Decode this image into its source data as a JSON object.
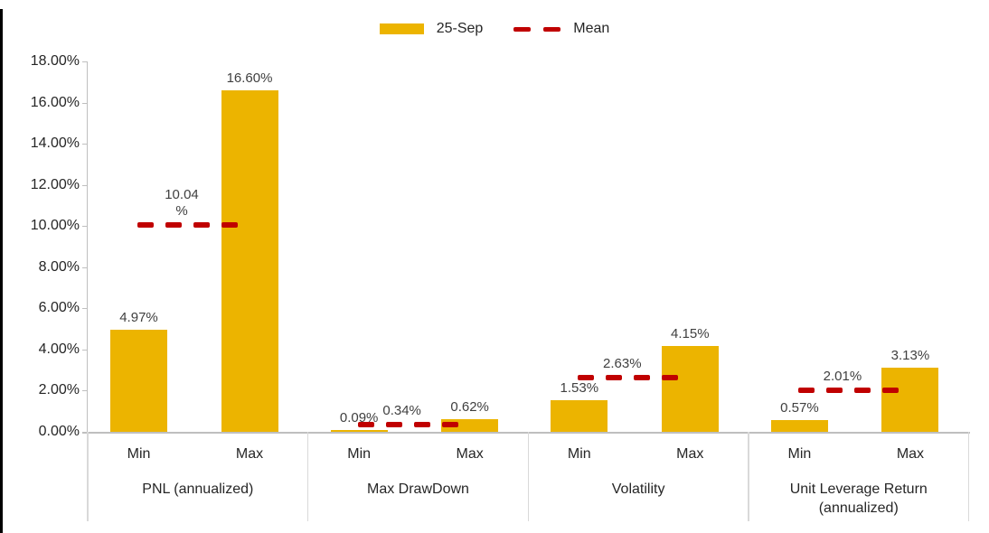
{
  "legend": {
    "items": [
      {
        "type": "bar",
        "label": "25-Sep",
        "color": "#ECB400"
      },
      {
        "type": "dash",
        "label": "Mean",
        "color": "#C00000"
      }
    ]
  },
  "chart_data": {
    "type": "bar",
    "title": "",
    "xlabel": "",
    "ylabel": "",
    "ylim": [
      0,
      18
    ],
    "grid": false,
    "legend_position": "top-center",
    "bar_series_name": "25-Sep",
    "mean_series_name": "Mean",
    "yticks": [
      {
        "value": 0,
        "label": "0.00%"
      },
      {
        "value": 2,
        "label": "2.00%"
      },
      {
        "value": 4,
        "label": "4.00%"
      },
      {
        "value": 6,
        "label": "6.00%"
      },
      {
        "value": 8,
        "label": "8.00%"
      },
      {
        "value": 10,
        "label": "10.00%"
      },
      {
        "value": 12,
        "label": "12.00%"
      },
      {
        "value": 14,
        "label": "14.00%"
      },
      {
        "value": 16,
        "label": "16.00%"
      },
      {
        "value": 18,
        "label": "18.00%"
      }
    ],
    "groups": [
      {
        "category": "PNL (annualized)",
        "bars": [
          {
            "label": "Min",
            "value": 4.97,
            "value_label": "4.97%"
          },
          {
            "label": "Max",
            "value": 16.6,
            "value_label": "16.60%"
          }
        ],
        "mean": {
          "value": 10.04,
          "label": "10.04\n%"
        }
      },
      {
        "category": "Max DrawDown",
        "bars": [
          {
            "label": "Min",
            "value": 0.09,
            "value_label": "0.09%"
          },
          {
            "label": "Max",
            "value": 0.62,
            "value_label": "0.62%"
          }
        ],
        "mean": {
          "value": 0.34,
          "label": "0.34%"
        }
      },
      {
        "category": "Volatility",
        "bars": [
          {
            "label": "Min",
            "value": 1.53,
            "value_label": "1.53%"
          },
          {
            "label": "Max",
            "value": 4.15,
            "value_label": "4.15%"
          }
        ],
        "mean": {
          "value": 2.63,
          "label": "2.63%"
        }
      },
      {
        "category": "Unit Leverage Return\n(annualized)",
        "bars": [
          {
            "label": "Min",
            "value": 0.57,
            "value_label": "0.57%"
          },
          {
            "label": "Max",
            "value": 3.13,
            "value_label": "3.13%"
          }
        ],
        "mean": {
          "value": 2.01,
          "label": "2.01%"
        }
      }
    ],
    "colors": {
      "bar": "#ECB400",
      "mean": "#C00000",
      "axis_line": "#BFBFBF",
      "divider_line": "#D9D9D9",
      "value_label_text": "#404040",
      "axis_text": "#262626",
      "frame_border": "#000000"
    }
  }
}
